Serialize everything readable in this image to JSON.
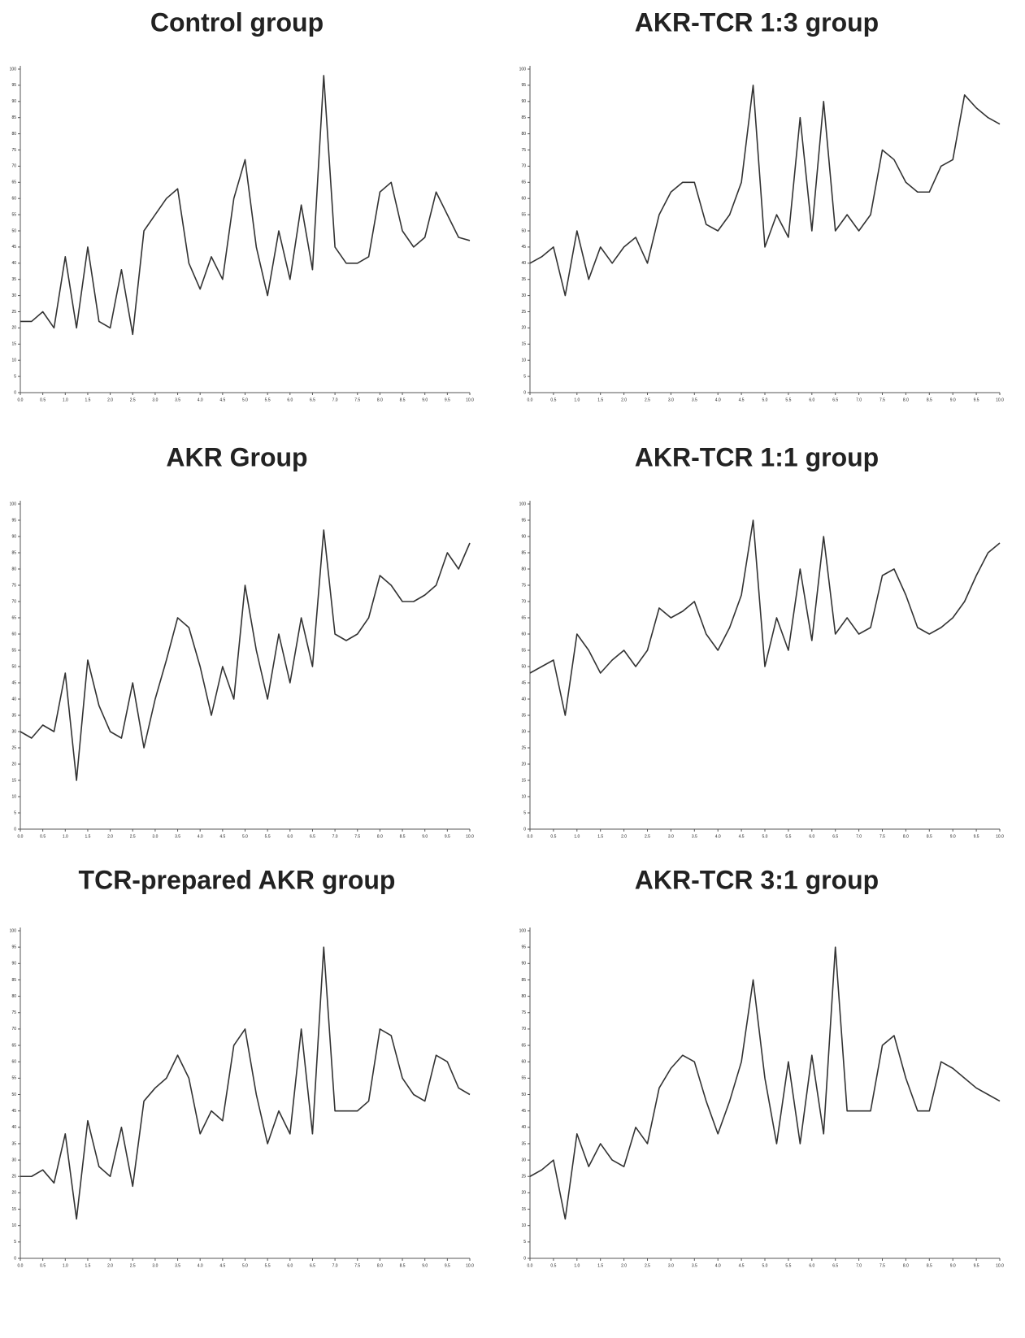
{
  "chart_data": [
    {
      "type": "line",
      "title": "Control group",
      "x": [
        0,
        0.25,
        0.5,
        0.75,
        1,
        1.25,
        1.5,
        1.75,
        2,
        2.25,
        2.5,
        2.75,
        3,
        3.25,
        3.5,
        3.75,
        4,
        4.25,
        4.5,
        4.75,
        5,
        5.25,
        5.5,
        5.75,
        6,
        6.25,
        6.5,
        6.75,
        7,
        7.25,
        7.5,
        7.75,
        8,
        8.25,
        8.5,
        8.75,
        9,
        9.25,
        9.5,
        9.75,
        10
      ],
      "values": [
        22,
        22,
        25,
        20,
        42,
        20,
        45,
        22,
        20,
        38,
        18,
        50,
        55,
        60,
        63,
        40,
        32,
        42,
        35,
        60,
        72,
        45,
        30,
        50,
        35,
        58,
        38,
        98,
        45,
        40,
        40,
        42,
        62,
        65,
        50,
        45,
        48,
        62,
        55,
        48,
        47
      ],
      "color": "#333333",
      "xlim": [
        0,
        10
      ],
      "ylim": [
        0,
        100
      ],
      "xticks": [
        {
          "value": 0,
          "label": "0.0"
        },
        {
          "value": 0.5,
          "label": "0.5"
        },
        {
          "value": 1,
          "label": "1.0"
        },
        {
          "value": 1.5,
          "label": "1.5"
        },
        {
          "value": 2,
          "label": "2.0"
        },
        {
          "value": 2.5,
          "label": "2.5"
        },
        {
          "value": 3,
          "label": "3.0"
        },
        {
          "value": 3.5,
          "label": "3.5"
        },
        {
          "value": 4,
          "label": "4.0"
        },
        {
          "value": 4.5,
          "label": "4.5"
        },
        {
          "value": 5,
          "label": "5.0"
        },
        {
          "value": 5.5,
          "label": "5.5"
        },
        {
          "value": 6,
          "label": "6.0"
        },
        {
          "value": 6.5,
          "label": "6.5"
        },
        {
          "value": 7,
          "label": "7.0"
        },
        {
          "value": 7.5,
          "label": "7.5"
        },
        {
          "value": 8,
          "label": "8.0"
        },
        {
          "value": 8.5,
          "label": "8.5"
        },
        {
          "value": 9,
          "label": "9.0"
        },
        {
          "value": 9.5,
          "label": "9.5"
        },
        {
          "value": 10,
          "label": "10.0"
        }
      ],
      "yticks": [
        0,
        5,
        10,
        15,
        20,
        25,
        30,
        35,
        40,
        45,
        50,
        55,
        60,
        65,
        70,
        75,
        80,
        85,
        90,
        95,
        100
      ]
    },
    {
      "type": "line",
      "title": "AKR-TCR 1:3 group",
      "x": [
        0,
        0.25,
        0.5,
        0.75,
        1,
        1.25,
        1.5,
        1.75,
        2,
        2.25,
        2.5,
        2.75,
        3,
        3.25,
        3.5,
        3.75,
        4,
        4.25,
        4.5,
        4.75,
        5,
        5.25,
        5.5,
        5.75,
        6,
        6.25,
        6.5,
        6.75,
        7,
        7.25,
        7.5,
        7.75,
        8,
        8.25,
        8.5,
        8.75,
        9,
        9.25,
        9.5,
        9.75,
        10
      ],
      "values": [
        40,
        42,
        45,
        30,
        50,
        35,
        45,
        40,
        45,
        48,
        40,
        55,
        62,
        65,
        65,
        52,
        50,
        55,
        65,
        95,
        45,
        55,
        48,
        85,
        50,
        90,
        50,
        55,
        50,
        55,
        75,
        72,
        65,
        62,
        62,
        70,
        72,
        92,
        88,
        85,
        83
      ],
      "color": "#333333",
      "xlim": [
        0,
        10
      ],
      "ylim": [
        0,
        100
      ],
      "xticks": [
        {
          "value": 0,
          "label": "0.0"
        },
        {
          "value": 0.5,
          "label": "0.5"
        },
        {
          "value": 1,
          "label": "1.0"
        },
        {
          "value": 1.5,
          "label": "1.5"
        },
        {
          "value": 2,
          "label": "2.0"
        },
        {
          "value": 2.5,
          "label": "2.5"
        },
        {
          "value": 3,
          "label": "3.0"
        },
        {
          "value": 3.5,
          "label": "3.5"
        },
        {
          "value": 4,
          "label": "4.0"
        },
        {
          "value": 4.5,
          "label": "4.5"
        },
        {
          "value": 5,
          "label": "5.0"
        },
        {
          "value": 5.5,
          "label": "5.5"
        },
        {
          "value": 6,
          "label": "6.0"
        },
        {
          "value": 6.5,
          "label": "6.5"
        },
        {
          "value": 7,
          "label": "7.0"
        },
        {
          "value": 7.5,
          "label": "7.5"
        },
        {
          "value": 8,
          "label": "8.0"
        },
        {
          "value": 8.5,
          "label": "8.5"
        },
        {
          "value": 9,
          "label": "9.0"
        },
        {
          "value": 9.5,
          "label": "9.5"
        },
        {
          "value": 10,
          "label": "10.0"
        }
      ],
      "yticks": [
        0,
        5,
        10,
        15,
        20,
        25,
        30,
        35,
        40,
        45,
        50,
        55,
        60,
        65,
        70,
        75,
        80,
        85,
        90,
        95,
        100
      ]
    },
    {
      "type": "line",
      "title": "AKR Group",
      "x": [
        0,
        0.25,
        0.5,
        0.75,
        1,
        1.25,
        1.5,
        1.75,
        2,
        2.25,
        2.5,
        2.75,
        3,
        3.25,
        3.5,
        3.75,
        4,
        4.25,
        4.5,
        4.75,
        5,
        5.25,
        5.5,
        5.75,
        6,
        6.25,
        6.5,
        6.75,
        7,
        7.25,
        7.5,
        7.75,
        8,
        8.25,
        8.5,
        8.75,
        9,
        9.25,
        9.5,
        9.75,
        10
      ],
      "values": [
        30,
        28,
        32,
        30,
        48,
        15,
        52,
        38,
        30,
        28,
        45,
        25,
        40,
        52,
        65,
        62,
        50,
        35,
        50,
        40,
        75,
        55,
        40,
        60,
        45,
        65,
        50,
        92,
        60,
        58,
        60,
        65,
        78,
        75,
        70,
        70,
        72,
        75,
        85,
        80,
        88
      ],
      "color": "#333333",
      "xlim": [
        0,
        10
      ],
      "ylim": [
        0,
        100
      ],
      "xticks": [
        {
          "value": 0,
          "label": "0.0"
        },
        {
          "value": 0.5,
          "label": "0.5"
        },
        {
          "value": 1,
          "label": "1.0"
        },
        {
          "value": 1.5,
          "label": "1.5"
        },
        {
          "value": 2,
          "label": "2.0"
        },
        {
          "value": 2.5,
          "label": "2.5"
        },
        {
          "value": 3,
          "label": "3.0"
        },
        {
          "value": 3.5,
          "label": "3.5"
        },
        {
          "value": 4,
          "label": "4.0"
        },
        {
          "value": 4.5,
          "label": "4.5"
        },
        {
          "value": 5,
          "label": "5.0"
        },
        {
          "value": 5.5,
          "label": "5.5"
        },
        {
          "value": 6,
          "label": "6.0"
        },
        {
          "value": 6.5,
          "label": "6.5"
        },
        {
          "value": 7,
          "label": "7.0"
        },
        {
          "value": 7.5,
          "label": "7.5"
        },
        {
          "value": 8,
          "label": "8.0"
        },
        {
          "value": 8.5,
          "label": "8.5"
        },
        {
          "value": 9,
          "label": "9.0"
        },
        {
          "value": 9.5,
          "label": "9.5"
        },
        {
          "value": 10,
          "label": "10.0"
        }
      ],
      "yticks": [
        0,
        5,
        10,
        15,
        20,
        25,
        30,
        35,
        40,
        45,
        50,
        55,
        60,
        65,
        70,
        75,
        80,
        85,
        90,
        95,
        100
      ]
    },
    {
      "type": "line",
      "title": "AKR-TCR 1:1 group",
      "x": [
        0,
        0.25,
        0.5,
        0.75,
        1,
        1.25,
        1.5,
        1.75,
        2,
        2.25,
        2.5,
        2.75,
        3,
        3.25,
        3.5,
        3.75,
        4,
        4.25,
        4.5,
        4.75,
        5,
        5.25,
        5.5,
        5.75,
        6,
        6.25,
        6.5,
        6.75,
        7,
        7.25,
        7.5,
        7.75,
        8,
        8.25,
        8.5,
        8.75,
        9,
        9.25,
        9.5,
        9.75,
        10
      ],
      "values": [
        48,
        50,
        52,
        35,
        60,
        55,
        48,
        52,
        55,
        50,
        55,
        68,
        65,
        67,
        70,
        60,
        55,
        62,
        72,
        95,
        50,
        65,
        55,
        80,
        58,
        90,
        60,
        65,
        60,
        62,
        78,
        80,
        72,
        62,
        60,
        62,
        65,
        70,
        78,
        85,
        88
      ],
      "color": "#333333",
      "xlim": [
        0,
        10
      ],
      "ylim": [
        0,
        100
      ],
      "xticks": [
        {
          "value": 0,
          "label": "0.0"
        },
        {
          "value": 0.5,
          "label": "0.5"
        },
        {
          "value": 1,
          "label": "1.0"
        },
        {
          "value": 1.5,
          "label": "1.5"
        },
        {
          "value": 2,
          "label": "2.0"
        },
        {
          "value": 2.5,
          "label": "2.5"
        },
        {
          "value": 3,
          "label": "3.0"
        },
        {
          "value": 3.5,
          "label": "3.5"
        },
        {
          "value": 4,
          "label": "4.0"
        },
        {
          "value": 4.5,
          "label": "4.5"
        },
        {
          "value": 5,
          "label": "5.0"
        },
        {
          "value": 5.5,
          "label": "5.5"
        },
        {
          "value": 6,
          "label": "6.0"
        },
        {
          "value": 6.5,
          "label": "6.5"
        },
        {
          "value": 7,
          "label": "7.0"
        },
        {
          "value": 7.5,
          "label": "7.5"
        },
        {
          "value": 8,
          "label": "8.0"
        },
        {
          "value": 8.5,
          "label": "8.5"
        },
        {
          "value": 9,
          "label": "9.0"
        },
        {
          "value": 9.5,
          "label": "9.5"
        },
        {
          "value": 10,
          "label": "10.0"
        }
      ],
      "yticks": [
        0,
        5,
        10,
        15,
        20,
        25,
        30,
        35,
        40,
        45,
        50,
        55,
        60,
        65,
        70,
        75,
        80,
        85,
        90,
        95,
        100
      ]
    },
    {
      "type": "line",
      "title": "TCR-prepared AKR group",
      "x": [
        0,
        0.25,
        0.5,
        0.75,
        1,
        1.25,
        1.5,
        1.75,
        2,
        2.25,
        2.5,
        2.75,
        3,
        3.25,
        3.5,
        3.75,
        4,
        4.25,
        4.5,
        4.75,
        5,
        5.25,
        5.5,
        5.75,
        6,
        6.25,
        6.5,
        6.75,
        7,
        7.25,
        7.5,
        7.75,
        8,
        8.25,
        8.5,
        8.75,
        9,
        9.25,
        9.5,
        9.75,
        10
      ],
      "values": [
        25,
        25,
        27,
        23,
        38,
        12,
        42,
        28,
        25,
        40,
        22,
        48,
        52,
        55,
        62,
        55,
        38,
        45,
        42,
        65,
        70,
        50,
        35,
        45,
        38,
        70,
        38,
        95,
        45,
        45,
        45,
        48,
        70,
        68,
        55,
        50,
        48,
        62,
        60,
        52,
        50
      ],
      "color": "#333333",
      "xlim": [
        0,
        10
      ],
      "ylim": [
        0,
        100
      ],
      "xticks": [
        {
          "value": 0,
          "label": "0.0"
        },
        {
          "value": 0.5,
          "label": "0.5"
        },
        {
          "value": 1,
          "label": "1.0"
        },
        {
          "value": 1.5,
          "label": "1.5"
        },
        {
          "value": 2,
          "label": "2.0"
        },
        {
          "value": 2.5,
          "label": "2.5"
        },
        {
          "value": 3,
          "label": "3.0"
        },
        {
          "value": 3.5,
          "label": "3.5"
        },
        {
          "value": 4,
          "label": "4.0"
        },
        {
          "value": 4.5,
          "label": "4.5"
        },
        {
          "value": 5,
          "label": "5.0"
        },
        {
          "value": 5.5,
          "label": "5.5"
        },
        {
          "value": 6,
          "label": "6.0"
        },
        {
          "value": 6.5,
          "label": "6.5"
        },
        {
          "value": 7,
          "label": "7.0"
        },
        {
          "value": 7.5,
          "label": "7.5"
        },
        {
          "value": 8,
          "label": "8.0"
        },
        {
          "value": 8.5,
          "label": "8.5"
        },
        {
          "value": 9,
          "label": "9.0"
        },
        {
          "value": 9.5,
          "label": "9.5"
        },
        {
          "value": 10,
          "label": "10.0"
        }
      ],
      "yticks": [
        0,
        5,
        10,
        15,
        20,
        25,
        30,
        35,
        40,
        45,
        50,
        55,
        60,
        65,
        70,
        75,
        80,
        85,
        90,
        95,
        100
      ]
    },
    {
      "type": "line",
      "title": "AKR-TCR 3:1 group",
      "x": [
        0,
        0.25,
        0.5,
        0.75,
        1,
        1.25,
        1.5,
        1.75,
        2,
        2.25,
        2.5,
        2.75,
        3,
        3.25,
        3.5,
        3.75,
        4,
        4.25,
        4.5,
        4.75,
        5,
        5.25,
        5.5,
        5.75,
        6,
        6.25,
        6.5,
        6.75,
        7,
        7.25,
        7.5,
        7.75,
        8,
        8.25,
        8.5,
        8.75,
        9,
        9.25,
        9.5,
        9.75,
        10
      ],
      "values": [
        25,
        27,
        30,
        12,
        38,
        28,
        35,
        30,
        28,
        40,
        35,
        52,
        58,
        62,
        60,
        48,
        38,
        48,
        60,
        85,
        55,
        35,
        60,
        35,
        62,
        38,
        95,
        45,
        45,
        45,
        65,
        68,
        55,
        45,
        45,
        60,
        58,
        55,
        52,
        50,
        48
      ],
      "color": "#333333",
      "xlim": [
        0,
        10
      ],
      "ylim": [
        0,
        100
      ],
      "xticks": [
        {
          "value": 0,
          "label": "0.0"
        },
        {
          "value": 0.5,
          "label": "0.5"
        },
        {
          "value": 1,
          "label": "1.0"
        },
        {
          "value": 1.5,
          "label": "1.5"
        },
        {
          "value": 2,
          "label": "2.0"
        },
        {
          "value": 2.5,
          "label": "2.5"
        },
        {
          "value": 3,
          "label": "3.0"
        },
        {
          "value": 3.5,
          "label": "3.5"
        },
        {
          "value": 4,
          "label": "4.0"
        },
        {
          "value": 4.5,
          "label": "4.5"
        },
        {
          "value": 5,
          "label": "5.0"
        },
        {
          "value": 5.5,
          "label": "5.5"
        },
        {
          "value": 6,
          "label": "6.0"
        },
        {
          "value": 6.5,
          "label": "6.5"
        },
        {
          "value": 7,
          "label": "7.0"
        },
        {
          "value": 7.5,
          "label": "7.5"
        },
        {
          "value": 8,
          "label": "8.0"
        },
        {
          "value": 8.5,
          "label": "8.5"
        },
        {
          "value": 9,
          "label": "9.0"
        },
        {
          "value": 9.5,
          "label": "9.5"
        },
        {
          "value": 10,
          "label": "10.0"
        }
      ],
      "yticks": [
        0,
        5,
        10,
        15,
        20,
        25,
        30,
        35,
        40,
        45,
        50,
        55,
        60,
        65,
        70,
        75,
        80,
        85,
        90,
        95,
        100
      ]
    }
  ]
}
